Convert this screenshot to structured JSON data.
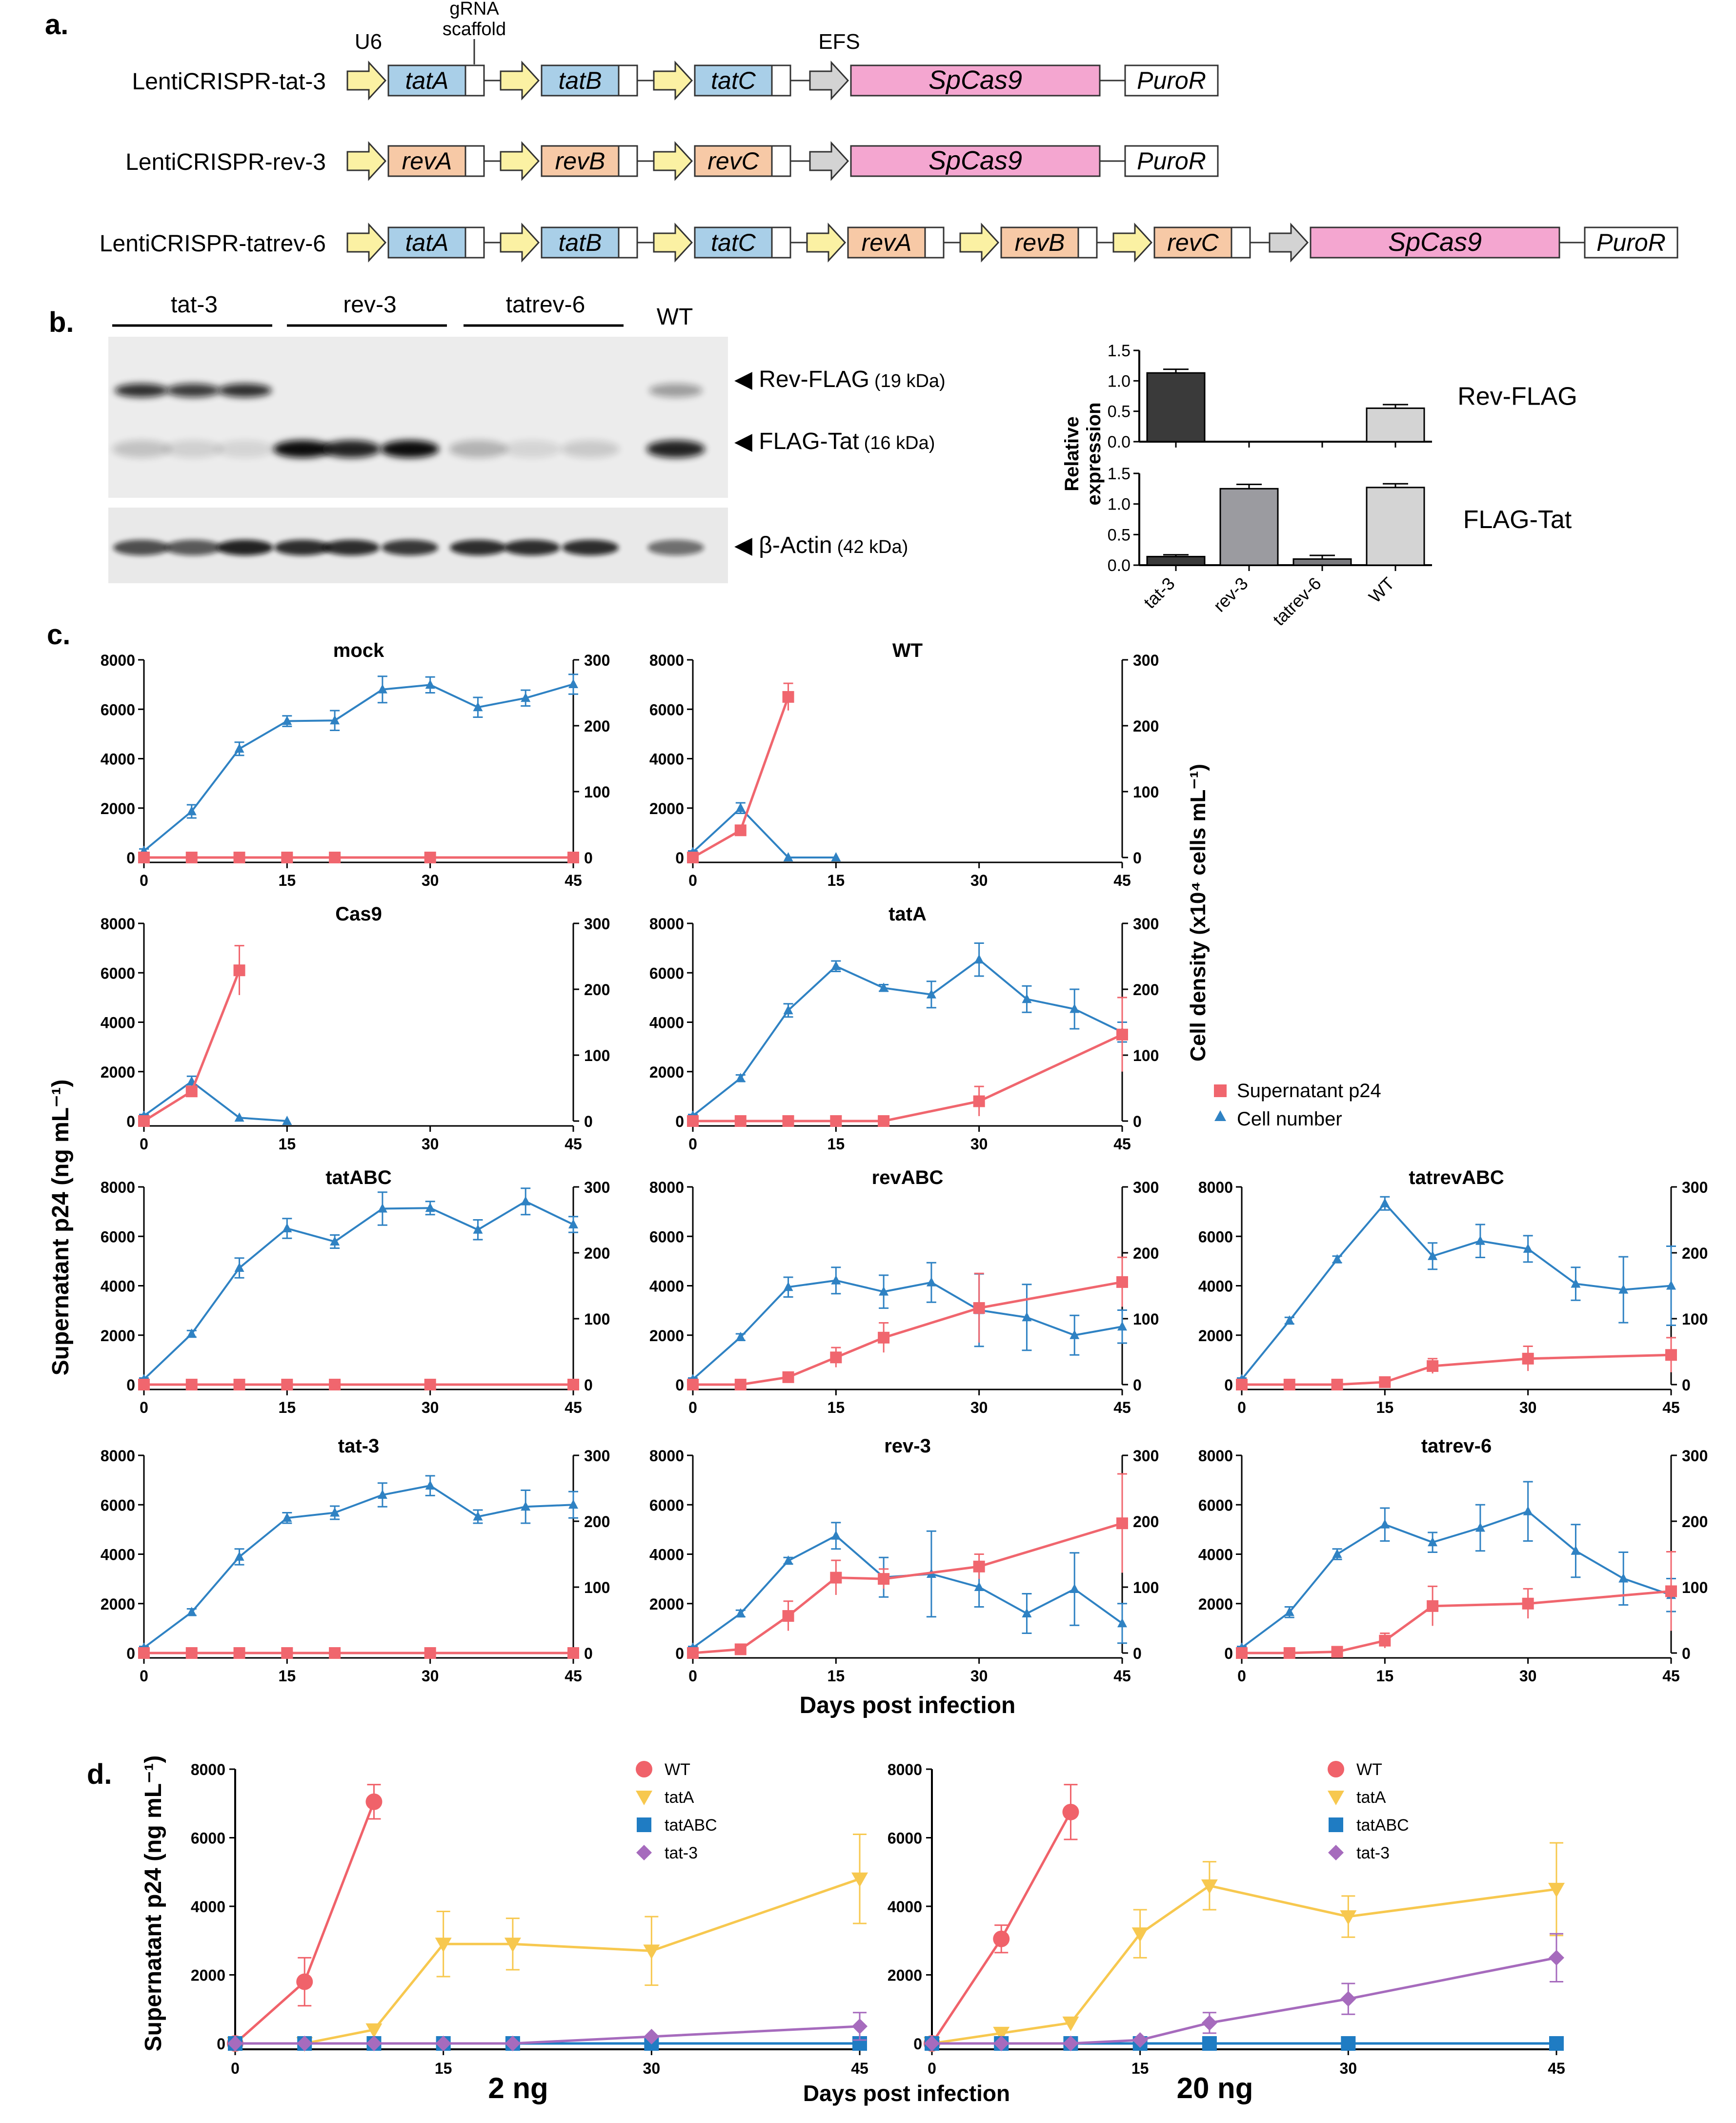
{
  "panel_labels": {
    "a": "a.",
    "b": "b.",
    "c": "c.",
    "d": "d."
  },
  "colors": {
    "tat": "#a9cfe8",
    "rev": "#f7c9a6",
    "cas9": "#f4a6d0",
    "promoter": "#fbf1a3",
    "efs": "#d3d3d3",
    "p24": "#f0666e",
    "cells": "#2f82c3",
    "wt": "#f0626a",
    "tatA": "#f7c84f",
    "tatABC": "#1f7cc3",
    "tat3": "#a66bbd"
  },
  "construct_map": {
    "top_labels": {
      "u6": "U6",
      "grna": "gRNA\nscaffold",
      "efs": "EFS"
    },
    "constructs": [
      {
        "name": "LentiCRISPR-tat-3",
        "guides": [
          "tatA",
          "tatB",
          "tatC"
        ],
        "cas9": "SpCas9",
        "puro": "PuroR"
      },
      {
        "name": "LentiCRISPR-rev-3",
        "guides": [
          "revA",
          "revB",
          "revC"
        ],
        "cas9": "SpCas9",
        "puro": "PuroR"
      },
      {
        "name": "LentiCRISPR-tatrev-6",
        "guides": [
          "tatA",
          "tatB",
          "tatC",
          "revA",
          "revB",
          "revC"
        ],
        "cas9": "SpCas9",
        "puro": "PuroR"
      }
    ]
  },
  "western_blot": {
    "lane_groups": [
      "tat-3",
      "rev-3",
      "tatrev-6",
      "WT"
    ],
    "band_labels": [
      {
        "name": "Rev-FLAG",
        "size": "(19 kDa)"
      },
      {
        "name": "FLAG-Tat",
        "size": "(16 kDa)"
      },
      {
        "name": "β-Actin",
        "size": "(42 kDa)"
      }
    ]
  },
  "chart_data": [
    {
      "id": "rel_rev",
      "type": "bar",
      "title": "Rev-FLAG",
      "ylabel": "Relative\nexpression",
      "categories": [
        "tat-3",
        "rev-3",
        "tatrev-6",
        "WT"
      ],
      "values": [
        1.13,
        0,
        0,
        0.55
      ],
      "errors": [
        0.06,
        0,
        0,
        0.06
      ],
      "ylim": [
        0,
        1.5
      ],
      "yticks": [
        "0.0",
        "0.5",
        "1.0",
        "1.5"
      ]
    },
    {
      "id": "rel_tat",
      "type": "bar",
      "title": "FLAG-Tat",
      "categories": [
        "tat-3",
        "rev-3",
        "tatrev-6",
        "WT"
      ],
      "values": [
        0.14,
        1.25,
        0.1,
        1.27
      ],
      "errors": [
        0.03,
        0.07,
        0.06,
        0.06
      ],
      "ylim": [
        0,
        1.5
      ],
      "yticks": [
        "0.0",
        "0.5",
        "1.0",
        "1.5"
      ]
    },
    {
      "id": "c_mock",
      "type": "line",
      "title": "mock",
      "p24": {
        "x": [
          0,
          5,
          10,
          15,
          20,
          30,
          45
        ],
        "y": [
          0,
          0,
          0,
          0,
          0,
          0,
          0
        ],
        "err": [
          0,
          0,
          0,
          0,
          0,
          0,
          0
        ]
      },
      "cells": {
        "x": [
          0,
          5,
          10,
          15,
          20,
          25,
          30,
          35,
          40,
          45
        ],
        "y": [
          10,
          70,
          165,
          207,
          208,
          255,
          262,
          228,
          242,
          263
        ],
        "err": [
          3,
          10,
          10,
          8,
          15,
          20,
          12,
          15,
          12,
          15
        ]
      }
    },
    {
      "id": "c_wt",
      "type": "line",
      "title": "WT",
      "p24": {
        "x": [
          0,
          5,
          10
        ],
        "y": [
          0,
          1100,
          6500
        ],
        "err": [
          0,
          100,
          550
        ]
      },
      "cells": {
        "x": [
          0,
          5,
          10,
          15
        ],
        "y": [
          8,
          75,
          0,
          0
        ],
        "err": [
          2,
          8,
          0,
          0
        ]
      }
    },
    {
      "id": "c_cas9",
      "type": "line",
      "title": "Cas9",
      "p24": {
        "x": [
          0,
          5,
          10
        ],
        "y": [
          0,
          1200,
          6100
        ],
        "err": [
          0,
          150,
          1000
        ]
      },
      "cells": {
        "x": [
          0,
          5,
          10,
          15
        ],
        "y": [
          8,
          60,
          5,
          0
        ],
        "err": [
          2,
          8,
          0,
          0
        ]
      }
    },
    {
      "id": "c_tatA",
      "type": "line",
      "title": "tatA",
      "p24": {
        "x": [
          0,
          5,
          10,
          15,
          20,
          30,
          45
        ],
        "y": [
          0,
          0,
          0,
          0,
          0,
          800,
          3500
        ],
        "err": [
          0,
          0,
          0,
          0,
          0,
          600,
          1500
        ]
      },
      "cells": {
        "x": [
          0,
          5,
          10,
          15,
          20,
          25,
          30,
          35,
          40,
          45
        ],
        "y": [
          8,
          65,
          168,
          235,
          202,
          192,
          245,
          185,
          170,
          135
        ],
        "err": [
          2,
          5,
          10,
          8,
          5,
          20,
          25,
          20,
          30,
          15
        ]
      }
    },
    {
      "id": "c_tatABC",
      "type": "line",
      "title": "tatABC",
      "p24": {
        "x": [
          0,
          5,
          10,
          15,
          20,
          30,
          45
        ],
        "y": [
          0,
          0,
          0,
          0,
          0,
          0,
          0
        ],
        "err": [
          0,
          0,
          0,
          0,
          0,
          0,
          0
        ]
      },
      "cells": {
        "x": [
          0,
          5,
          10,
          15,
          20,
          25,
          30,
          35,
          40,
          45
        ],
        "y": [
          8,
          77,
          177,
          237,
          217,
          267,
          268,
          235,
          278,
          243
        ],
        "err": [
          2,
          5,
          15,
          15,
          10,
          25,
          10,
          15,
          20,
          12
        ]
      }
    },
    {
      "id": "c_revABC",
      "type": "line",
      "title": "revABC",
      "p24": {
        "x": [
          0,
          5,
          10,
          15,
          20,
          30,
          45
        ],
        "y": [
          0,
          0,
          300,
          1100,
          1900,
          3100,
          4150
        ],
        "err": [
          0,
          0,
          100,
          400,
          600,
          1400,
          1000
        ]
      },
      "cells": {
        "x": [
          0,
          5,
          10,
          15,
          20,
          25,
          30,
          35,
          40,
          45
        ],
        "y": [
          8,
          72,
          148,
          158,
          141,
          155,
          113,
          102,
          75,
          88
        ],
        "err": [
          2,
          5,
          15,
          20,
          25,
          30,
          55,
          50,
          30,
          25
        ]
      }
    },
    {
      "id": "c_tatrevABC",
      "type": "line",
      "title": "tatrevABC",
      "p24": {
        "x": [
          0,
          5,
          10,
          15,
          20,
          30,
          45
        ],
        "y": [
          0,
          0,
          0,
          100,
          750,
          1050,
          1200
        ],
        "err": [
          0,
          0,
          0,
          50,
          300,
          500,
          700
        ]
      },
      "cells": {
        "x": [
          0,
          5,
          10,
          15,
          20,
          25,
          30,
          35,
          40,
          45
        ],
        "y": [
          8,
          97,
          190,
          275,
          195,
          218,
          206,
          153,
          144,
          150
        ],
        "err": [
          2,
          5,
          5,
          10,
          20,
          25,
          20,
          25,
          50,
          60
        ]
      }
    },
    {
      "id": "c_tat3",
      "type": "line",
      "title": "tat-3",
      "p24": {
        "x": [
          0,
          5,
          10,
          15,
          20,
          30,
          45
        ],
        "y": [
          0,
          0,
          0,
          0,
          0,
          0,
          0
        ],
        "err": [
          0,
          0,
          0,
          0,
          0,
          0,
          0
        ]
      },
      "cells": {
        "x": [
          0,
          5,
          10,
          15,
          20,
          25,
          30,
          35,
          40,
          45
        ],
        "y": [
          8,
          62,
          146,
          205,
          213,
          240,
          254,
          207,
          222,
          225
        ],
        "err": [
          2,
          5,
          12,
          8,
          10,
          18,
          15,
          10,
          25,
          20
        ]
      }
    },
    {
      "id": "c_rev3",
      "type": "line",
      "title": "rev-3",
      "p24": {
        "x": [
          0,
          5,
          10,
          15,
          20,
          30,
          45
        ],
        "y": [
          0,
          150,
          1500,
          3050,
          3000,
          3500,
          5250
        ],
        "err": [
          0,
          50,
          600,
          700,
          400,
          500,
          2000
        ]
      },
      "cells": {
        "x": [
          0,
          5,
          10,
          15,
          20,
          25,
          30,
          35,
          40,
          45
        ],
        "y": [
          8,
          60,
          140,
          178,
          115,
          120,
          100,
          60,
          97,
          45
        ],
        "err": [
          2,
          5,
          5,
          20,
          30,
          65,
          30,
          30,
          55,
          30
        ]
      }
    },
    {
      "id": "c_tatrev6",
      "type": "line",
      "title": "tatrev-6",
      "p24": {
        "x": [
          0,
          5,
          10,
          15,
          20,
          30,
          45
        ],
        "y": [
          0,
          0,
          50,
          500,
          1900,
          2000,
          2500
        ],
        "err": [
          0,
          0,
          30,
          300,
          800,
          600,
          1600
        ]
      },
      "cells": {
        "x": [
          0,
          5,
          10,
          15,
          20,
          25,
          30,
          35,
          40,
          45
        ],
        "y": [
          8,
          62,
          150,
          195,
          168,
          190,
          215,
          155,
          113,
          88
        ],
        "err": [
          2,
          8,
          8,
          25,
          15,
          35,
          45,
          40,
          40,
          25
        ]
      }
    },
    {
      "id": "d_2ng",
      "type": "line",
      "title": "2 ng",
      "series": [
        {
          "name": "WT",
          "x": [
            0,
            5,
            10
          ],
          "y": [
            0,
            1800,
            7050
          ],
          "err": [
            0,
            700,
            500
          ]
        },
        {
          "name": "tatA",
          "x": [
            0,
            5,
            10,
            15,
            20,
            30,
            45
          ],
          "y": [
            0,
            0,
            400,
            2900,
            2900,
            2700,
            4800
          ],
          "err": [
            0,
            0,
            0,
            950,
            750,
            1000,
            1300
          ]
        },
        {
          "name": "tatABC",
          "x": [
            0,
            5,
            10,
            15,
            20,
            30,
            45
          ],
          "y": [
            0,
            0,
            0,
            0,
            0,
            0,
            0
          ],
          "err": [
            0,
            0,
            0,
            0,
            0,
            0,
            0
          ]
        },
        {
          "name": "tat-3",
          "x": [
            0,
            5,
            10,
            15,
            20,
            30,
            45
          ],
          "y": [
            0,
            0,
            0,
            0,
            0,
            200,
            500
          ],
          "err": [
            0,
            0,
            0,
            0,
            0,
            0,
            400
          ]
        }
      ]
    },
    {
      "id": "d_20ng",
      "type": "line",
      "title": "20 ng",
      "series": [
        {
          "name": "WT",
          "x": [
            0,
            5,
            10
          ],
          "y": [
            0,
            3050,
            6750
          ],
          "err": [
            0,
            400,
            800
          ]
        },
        {
          "name": "tatA",
          "x": [
            0,
            5,
            10,
            15,
            20,
            30,
            45
          ],
          "y": [
            0,
            300,
            600,
            3200,
            4600,
            3700,
            4500
          ],
          "err": [
            0,
            0,
            0,
            700,
            700,
            600,
            1350
          ]
        },
        {
          "name": "tatABC",
          "x": [
            0,
            5,
            10,
            15,
            20,
            30,
            45
          ],
          "y": [
            0,
            0,
            0,
            0,
            0,
            0,
            0
          ],
          "err": [
            0,
            0,
            0,
            0,
            0,
            0,
            0
          ]
        },
        {
          "name": "tat-3",
          "x": [
            0,
            5,
            10,
            15,
            20,
            30,
            45
          ],
          "y": [
            0,
            0,
            0,
            100,
            600,
            1300,
            2500
          ],
          "err": [
            0,
            0,
            0,
            0,
            300,
            450,
            700
          ]
        }
      ]
    }
  ],
  "axes_c": {
    "ylabel_left": "Supernatant p24 (ng mL⁻¹)",
    "ylabel_right": "Cell density (x10⁴ cells mL⁻¹)",
    "xlabel": "Days post infection",
    "ylim_left": [
      0,
      8000
    ],
    "ylim_right": [
      0,
      300
    ],
    "xlim": [
      0,
      45
    ],
    "yticks_left": [
      "0",
      "2000",
      "4000",
      "6000",
      "8000"
    ],
    "yticks_right": [
      "0",
      "100",
      "200",
      "300"
    ],
    "xticks": [
      "0",
      "15",
      "30",
      "45"
    ],
    "legend": [
      "Supernatant p24",
      "Cell number"
    ]
  },
  "axes_d": {
    "ylabel": "Supernatant p24 (ng mL⁻¹)",
    "xlabel": "Days post infection",
    "yticks": [
      "0",
      "2000",
      "4000",
      "6000",
      "8000"
    ],
    "xticks": [
      "0",
      "15",
      "30",
      "45"
    ],
    "legend": [
      "WT",
      "tatA",
      "tatABC",
      "tat-3"
    ]
  }
}
